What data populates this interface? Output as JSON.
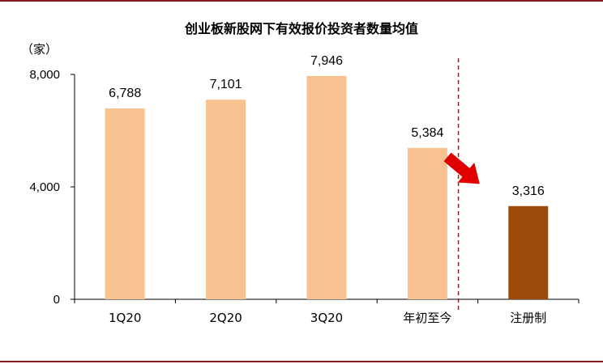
{
  "chart_data": {
    "type": "bar",
    "title": "创业板新股网下有效报价投资者数量均值",
    "unit": "（家）",
    "categories": [
      "1Q20",
      "2Q20",
      "3Q20",
      "年初至今",
      "注册制"
    ],
    "values": [
      6788,
      7101,
      7946,
      5384,
      3316
    ],
    "value_labels": [
      "6,788",
      "7,101",
      "7,946",
      "5,384",
      "3,316"
    ],
    "ylim": [
      0,
      8000
    ],
    "yticks": [
      0,
      4000,
      8000
    ],
    "ytick_labels": [
      "0",
      "4,000",
      "8,000"
    ],
    "bar_colors": [
      "#f8c190",
      "#f8c190",
      "#f8c190",
      "#f8c190",
      "#9c4a0a"
    ],
    "grid": false,
    "legend": "none",
    "annotations": [
      "red-dashed-divider",
      "red-arrow-icon"
    ],
    "accent_color": "#e00000"
  }
}
